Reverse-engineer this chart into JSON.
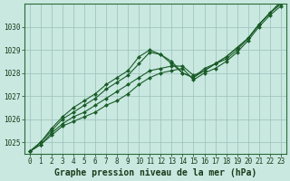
{
  "title": "Graphe pression niveau de la mer (hPa)",
  "bg_color": "#c8e8e0",
  "grid_color": "#9bbfba",
  "line_color": "#1a5c28",
  "x_values": [
    0,
    1,
    2,
    3,
    4,
    5,
    6,
    7,
    8,
    9,
    10,
    11,
    12,
    13,
    14,
    15,
    16,
    17,
    18,
    19,
    20,
    21,
    22,
    23
  ],
  "series": [
    [
      1024.6,
      1024.9,
      1025.3,
      1025.7,
      1025.9,
      1026.1,
      1026.3,
      1026.6,
      1026.8,
      1027.1,
      1027.5,
      1027.8,
      1028.0,
      1028.1,
      1028.2,
      1027.7,
      1028.0,
      1028.2,
      1028.5,
      1028.9,
      1029.4,
      1030.0,
      1030.5,
      1030.9
    ],
    [
      1024.6,
      1024.9,
      1025.4,
      1025.8,
      1026.1,
      1026.3,
      1026.6,
      1026.9,
      1027.2,
      1027.5,
      1027.8,
      1028.1,
      1028.2,
      1028.3,
      1028.3,
      1027.9,
      1028.1,
      1028.4,
      1028.7,
      1029.1,
      1029.5,
      1030.1,
      1030.6,
      1031.0
    ],
    [
      1024.6,
      1025.0,
      1025.5,
      1026.0,
      1026.3,
      1026.6,
      1026.9,
      1027.3,
      1027.6,
      1027.9,
      1028.4,
      1028.9,
      1028.8,
      1028.5,
      1028.0,
      1027.8,
      1028.1,
      1028.4,
      1028.7,
      1029.1,
      1029.5,
      1030.1,
      1030.6,
      1031.0
    ],
    [
      1024.6,
      1025.0,
      1025.6,
      1026.1,
      1026.5,
      1026.8,
      1027.1,
      1027.5,
      1027.8,
      1028.1,
      1028.7,
      1029.0,
      1028.8,
      1028.4,
      1028.0,
      1027.8,
      1028.2,
      1028.4,
      1028.6,
      1029.0,
      1029.5,
      1030.1,
      1030.6,
      1031.1
    ]
  ],
  "ylim": [
    1024.5,
    1031.0
  ],
  "yticks": [
    1025,
    1026,
    1027,
    1028,
    1029,
    1030
  ],
  "xticks": [
    0,
    1,
    2,
    3,
    4,
    5,
    6,
    7,
    8,
    9,
    10,
    11,
    12,
    13,
    14,
    15,
    16,
    17,
    18,
    19,
    20,
    21,
    22,
    23
  ],
  "tick_fontsize": 5.5,
  "title_fontsize": 7,
  "marker_size": 2.0,
  "line_width": 0.8
}
